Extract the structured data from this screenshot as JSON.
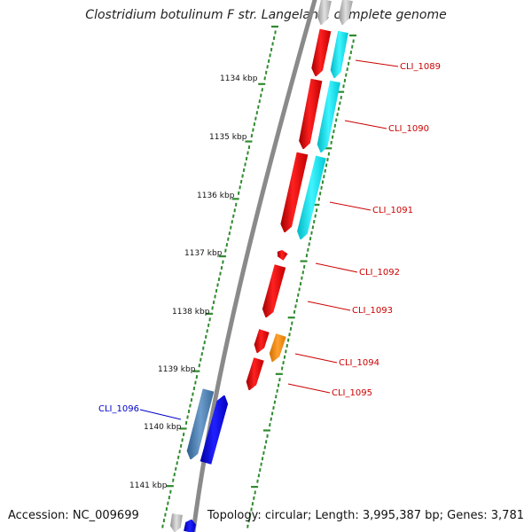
{
  "title": "Clostridium botulinum F str. Langeland, complete genome",
  "footer": {
    "accession": "Accession: NC_009699",
    "topology": "Topology: circular; Length: 3,995,387 bp; Genes: 3,781"
  },
  "colors": {
    "backbone": "#8a8a8a",
    "tick": "#2e8b2e",
    "gene_red": "#ee0000",
    "gene_cyan": "#00e5ee",
    "gene_orange": "#ff8c00",
    "gene_blue": "#0000ee",
    "gene_steelblue": "#4f82b4",
    "gene_gray": "#bbbbbb",
    "label_red": "#cc0000",
    "label_blue": "#0000cc"
  },
  "scale_labels": [
    "1134 kbp",
    "1135 kbp",
    "1136 kbp",
    "1137 kbp",
    "1138 kbp",
    "1139 kbp",
    "1140 kbp",
    "1141 kbp"
  ],
  "gene_labels": [
    {
      "text": "CLI_1089",
      "color": "red"
    },
    {
      "text": "CLI_1090",
      "color": "red"
    },
    {
      "text": "CLI_1091",
      "color": "red"
    },
    {
      "text": "CLI_1092",
      "color": "red"
    },
    {
      "text": "CLI_1093",
      "color": "red"
    },
    {
      "text": "CLI_1094",
      "color": "red"
    },
    {
      "text": "CLI_1095",
      "color": "red"
    },
    {
      "text": "CLI_1096",
      "color": "blue"
    }
  ]
}
